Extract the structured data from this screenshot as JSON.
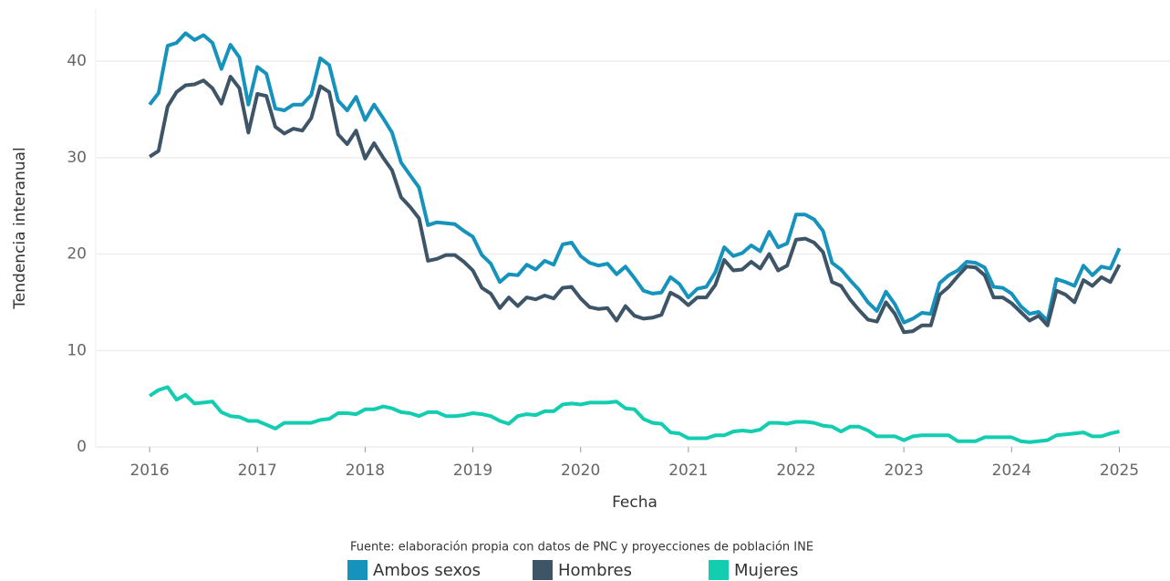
{
  "chart_data": {
    "type": "line",
    "x_label": "Fecha",
    "y_label": "Tendencia interanual",
    "source": "Fuente: elaboración propia con datos de PNC y proyecciones de población INE",
    "xlim": [
      2015.5,
      2025.47
    ],
    "xticks": [
      2016,
      2017,
      2018,
      2019,
      2020,
      2021,
      2022,
      2023,
      2024,
      2025
    ],
    "ylim": [
      0,
      45.4
    ],
    "yticks": [
      0,
      10,
      20,
      30,
      40
    ],
    "grid": true,
    "x": [
      "2016-01",
      "2016-02",
      "2016-03",
      "2016-04",
      "2016-05",
      "2016-06",
      "2016-07",
      "2016-08",
      "2016-09",
      "2016-10",
      "2016-11",
      "2016-12",
      "2017-01",
      "2017-02",
      "2017-03",
      "2017-04",
      "2017-05",
      "2017-06",
      "2017-07",
      "2017-08",
      "2017-09",
      "2017-10",
      "2017-11",
      "2017-12",
      "2018-01",
      "2018-02",
      "2018-03",
      "2018-04",
      "2018-05",
      "2018-06",
      "2018-07",
      "2018-08",
      "2018-09",
      "2018-10",
      "2018-11",
      "2018-12",
      "2019-01",
      "2019-02",
      "2019-03",
      "2019-04",
      "2019-05",
      "2019-06",
      "2019-07",
      "2019-08",
      "2019-09",
      "2019-10",
      "2019-11",
      "2019-12",
      "2020-01",
      "2020-02",
      "2020-03",
      "2020-04",
      "2020-05",
      "2020-06",
      "2020-07",
      "2020-08",
      "2020-09",
      "2020-10",
      "2020-11",
      "2020-12",
      "2021-01",
      "2021-02",
      "2021-03",
      "2021-04",
      "2021-05",
      "2021-06",
      "2021-07",
      "2021-08",
      "2021-09",
      "2021-10",
      "2021-11",
      "2021-12",
      "2022-01",
      "2022-02",
      "2022-03",
      "2022-04",
      "2022-05",
      "2022-06",
      "2022-07",
      "2022-08",
      "2022-09",
      "2022-10",
      "2022-11",
      "2022-12",
      "2023-01",
      "2023-02",
      "2023-03",
      "2023-04",
      "2023-05",
      "2023-06",
      "2023-07",
      "2023-08",
      "2023-09",
      "2023-10",
      "2023-11",
      "2023-12",
      "2024-01",
      "2024-02",
      "2024-03",
      "2024-04",
      "2024-05",
      "2024-06",
      "2024-07",
      "2024-08",
      "2024-09",
      "2024-10",
      "2024-11",
      "2024-12",
      "2025-01"
    ],
    "series": [
      {
        "name": "Ambos sexos",
        "color": "#1593bd",
        "values": [
          35.5,
          36.7,
          41.6,
          41.9,
          42.9,
          42.2,
          42.7,
          41.9,
          39.2,
          41.7,
          40.4,
          35.5,
          39.4,
          38.7,
          35.1,
          34.9,
          35.5,
          35.5,
          36.5,
          40.3,
          39.6,
          35.9,
          34.9,
          36.3,
          33.9,
          35.5,
          34.1,
          32.6,
          29.5,
          28.2,
          26.9,
          23.0,
          23.3,
          23.2,
          23.1,
          22.4,
          21.8,
          19.9,
          19.0,
          17.1,
          17.9,
          17.8,
          18.9,
          18.4,
          19.3,
          18.9,
          21.0,
          21.2,
          19.8,
          19.1,
          18.8,
          19.0,
          17.9,
          18.7,
          17.5,
          16.2,
          15.9,
          16.0,
          17.6,
          16.9,
          15.5,
          16.4,
          16.6,
          18.1,
          20.7,
          19.8,
          20.1,
          20.9,
          20.3,
          22.3,
          20.7,
          21.1,
          24.1,
          24.1,
          23.6,
          22.4,
          19.1,
          18.4,
          17.3,
          16.3,
          15.0,
          14.1,
          16.1,
          14.8,
          12.9,
          13.3,
          13.9,
          13.8,
          17.0,
          17.8,
          18.3,
          19.2,
          19.1,
          18.6,
          16.6,
          16.5,
          15.9,
          14.6,
          13.8,
          14.0,
          13.1,
          17.4,
          17.1,
          16.7,
          18.8,
          17.8,
          18.7,
          18.5,
          20.6
        ]
      },
      {
        "name": "Hombres",
        "color": "#3e5467",
        "values": [
          30.1,
          30.7,
          35.3,
          36.8,
          37.5,
          37.6,
          38.0,
          37.2,
          35.6,
          38.4,
          37.2,
          32.6,
          36.6,
          36.4,
          33.2,
          32.5,
          33.0,
          32.8,
          34.1,
          37.4,
          36.8,
          32.4,
          31.4,
          32.8,
          29.9,
          31.5,
          30.0,
          28.7,
          25.9,
          24.9,
          23.7,
          19.3,
          19.5,
          19.9,
          19.9,
          19.2,
          18.3,
          16.5,
          15.9,
          14.4,
          15.5,
          14.6,
          15.5,
          15.3,
          15.7,
          15.4,
          16.5,
          16.6,
          15.4,
          14.5,
          14.3,
          14.4,
          13.1,
          14.6,
          13.6,
          13.3,
          13.4,
          13.7,
          16.0,
          15.5,
          14.7,
          15.5,
          15.5,
          16.8,
          19.4,
          18.3,
          18.4,
          19.2,
          18.5,
          20.0,
          18.3,
          18.8,
          21.5,
          21.6,
          21.2,
          20.2,
          17.1,
          16.7,
          15.3,
          14.2,
          13.2,
          13.0,
          15.0,
          13.8,
          11.9,
          12.0,
          12.6,
          12.6,
          15.8,
          16.6,
          17.7,
          18.7,
          18.6,
          17.8,
          15.5,
          15.5,
          14.9,
          14.0,
          13.1,
          13.6,
          12.6,
          16.2,
          15.8,
          15.0,
          17.3,
          16.7,
          17.6,
          17.1,
          18.9
        ]
      },
      {
        "name": "Mujeres",
        "color": "#12cdb0",
        "values": [
          5.3,
          5.9,
          6.2,
          4.9,
          5.4,
          4.5,
          4.6,
          4.7,
          3.6,
          3.2,
          3.1,
          2.7,
          2.7,
          2.3,
          1.9,
          2.5,
          2.5,
          2.5,
          2.5,
          2.8,
          2.9,
          3.5,
          3.5,
          3.4,
          3.9,
          3.9,
          4.2,
          4.0,
          3.6,
          3.5,
          3.2,
          3.6,
          3.6,
          3.2,
          3.2,
          3.3,
          3.5,
          3.4,
          3.2,
          2.7,
          2.4,
          3.2,
          3.4,
          3.3,
          3.7,
          3.7,
          4.4,
          4.5,
          4.4,
          4.6,
          4.6,
          4.6,
          4.7,
          4.0,
          3.9,
          2.9,
          2.5,
          2.4,
          1.5,
          1.4,
          0.9,
          0.9,
          0.9,
          1.2,
          1.2,
          1.6,
          1.7,
          1.6,
          1.8,
          2.5,
          2.5,
          2.4,
          2.6,
          2.6,
          2.5,
          2.2,
          2.1,
          1.6,
          2.1,
          2.1,
          1.7,
          1.1,
          1.1,
          1.1,
          0.7,
          1.1,
          1.2,
          1.2,
          1.2,
          1.2,
          0.6,
          0.6,
          0.6,
          1.0,
          1.0,
          1.0,
          1.0,
          0.6,
          0.5,
          0.6,
          0.7,
          1.2,
          1.3,
          1.4,
          1.5,
          1.1,
          1.1,
          1.4,
          1.6
        ]
      }
    ]
  }
}
